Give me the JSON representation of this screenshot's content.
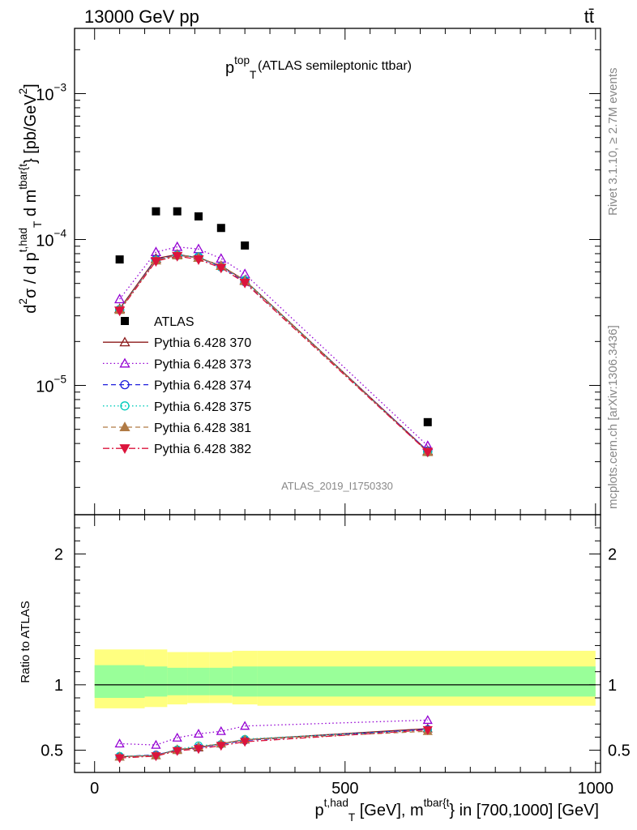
{
  "header": {
    "energy_label": "13000 GeV pp",
    "process": "tt̄"
  },
  "side_labels": {
    "rivet": "Rivet 3.1.10, ≥ 2.7M events",
    "source": "mcplots.cern.ch [arXiv:1306.3436]"
  },
  "chart_data": [
    {
      "type": "scatter",
      "panel": "main",
      "title": {
        "base": "p",
        "sup": "top",
        "sub": "T",
        "tail": " (ATLAS semileptonic ttbar)"
      },
      "ylabel": {
        "parts": [
          {
            "t": "d"
          },
          {
            "t": "2",
            "s": "sup"
          },
          {
            "t": "σ / d p"
          },
          {
            "t": "t,had",
            "s": "sup"
          },
          {
            "t": "T",
            "s": "sub"
          },
          {
            "t": " d m"
          },
          {
            "t": "tbar{t",
            "s": "sup"
          },
          {
            "t": "} [pb/GeV"
          },
          {
            "t": "2",
            "s": "sup"
          },
          {
            "t": "]"
          }
        ]
      },
      "yscale": "log",
      "ylim": [
        1.3e-06,
        0.0028
      ],
      "xlim": [
        -40,
        1010
      ],
      "yticks_major": [
        {
          "v": 1e-05,
          "base": "10",
          "exp": "−5"
        },
        {
          "v": 0.0001,
          "base": "10",
          "exp": "−4"
        },
        {
          "v": 0.001,
          "base": "10",
          "exp": "−3"
        }
      ],
      "watermark": "ATLAS_2019_I1750330",
      "legend_position": "middle-left",
      "x": [
        50,
        122.5,
        165,
        207.5,
        252.5,
        300,
        665
      ],
      "bin_edges": [
        0,
        100,
        145,
        185,
        230,
        275,
        325,
        1000
      ],
      "series": [
        {
          "name": "ATLAS",
          "color": "#000000",
          "marker": "square",
          "style": "none",
          "values": [
            7.3e-05,
            0.000156,
            0.000156,
            0.000144,
            0.00012,
            9.1e-05,
            5.6e-06
          ]
        },
        {
          "name": "Pythia 6.428 370",
          "color": "#8b1a1a",
          "marker": "triangle-up-open",
          "style": "solid",
          "values": [
            3.35e-05,
            7.4e-05,
            7.9e-05,
            7.5e-05,
            6.6e-05,
            5.25e-05,
            3.55e-06
          ]
        },
        {
          "name": "Pythia 6.428 373",
          "color": "#9400d3",
          "marker": "triangle-up-open",
          "style": "dotted",
          "values": [
            3.9e-05,
            8.2e-05,
            8.9e-05,
            8.6e-05,
            7.4e-05,
            5.8e-05,
            3.85e-06
          ]
        },
        {
          "name": "Pythia 6.428 374",
          "color": "#1e1edc",
          "marker": "circle-open",
          "style": "dashed",
          "values": [
            3.3e-05,
            7.3e-05,
            7.8e-05,
            7.5e-05,
            6.5e-05,
            5.15e-05,
            3.55e-06
          ]
        },
        {
          "name": "Pythia 6.428 375",
          "color": "#00ccbb",
          "marker": "circle-open",
          "style": "dotted",
          "values": [
            3.3e-05,
            7.2e-05,
            7.8e-05,
            7.6e-05,
            6.5e-05,
            5.25e-05,
            3.5e-06
          ]
        },
        {
          "name": "Pythia 6.428 381",
          "color": "#b07a45",
          "marker": "triangle-up-filled",
          "style": "dashed",
          "values": [
            3.3e-05,
            7.2e-05,
            7.8e-05,
            7.5e-05,
            6.6e-05,
            5.2e-05,
            3.5e-06
          ]
        },
        {
          "name": "Pythia 6.428 382",
          "color": "#dc143c",
          "marker": "triangle-down-filled",
          "style": "dashdot",
          "values": [
            3.25e-05,
            7.1e-05,
            7.7e-05,
            7.3e-05,
            6.4e-05,
            5.05e-05,
            3.5e-06
          ]
        }
      ]
    },
    {
      "type": "scatter",
      "panel": "ratio",
      "ylabel": "Ratio to ATLAS",
      "ylim": [
        0.33,
        2.3
      ],
      "yticks": [
        0.5,
        1,
        2
      ],
      "xlim": [
        -40,
        1010
      ],
      "xticks": [
        0,
        500,
        1000
      ],
      "xlabel": {
        "parts": [
          {
            "t": "p"
          },
          {
            "t": "t,had",
            "s": "sup"
          },
          {
            "t": "T",
            "s": "sub"
          },
          {
            "t": " [GeV], m"
          },
          {
            "t": "tbar{t",
            "s": "sup"
          },
          {
            "t": "} in [700,1000] [GeV]"
          }
        ]
      },
      "bands": {
        "bin_edges": [
          0,
          100,
          145,
          185,
          230,
          275,
          325,
          1000
        ],
        "yellow": [
          [
            0.82,
            1.27
          ],
          [
            0.83,
            1.27
          ],
          [
            0.85,
            1.25
          ],
          [
            0.86,
            1.25
          ],
          [
            0.86,
            1.25
          ],
          [
            0.85,
            1.26
          ],
          [
            0.84,
            1.26
          ]
        ],
        "green": [
          [
            0.9,
            1.15
          ],
          [
            0.91,
            1.14
          ],
          [
            0.92,
            1.13
          ],
          [
            0.92,
            1.13
          ],
          [
            0.92,
            1.13
          ],
          [
            0.91,
            1.14
          ],
          [
            0.91,
            1.14
          ]
        ]
      },
      "x": [
        50,
        122.5,
        165,
        207.5,
        252.5,
        300,
        665
      ],
      "series": [
        {
          "name": "Pythia 6.428 370",
          "values": [
            0.45,
            0.46,
            0.505,
            0.52,
            0.55,
            0.58,
            0.665
          ]
        },
        {
          "name": "Pythia 6.428 373",
          "values": [
            0.55,
            0.54,
            0.595,
            0.625,
            0.645,
            0.685,
            0.73
          ]
        },
        {
          "name": "Pythia 6.428 374",
          "values": [
            0.45,
            0.465,
            0.5,
            0.52,
            0.545,
            0.575,
            0.66
          ]
        },
        {
          "name": "Pythia 6.428 375",
          "values": [
            0.455,
            0.46,
            0.505,
            0.535,
            0.545,
            0.585,
            0.655
          ]
        },
        {
          "name": "Pythia 6.428 381",
          "values": [
            0.45,
            0.46,
            0.5,
            0.525,
            0.55,
            0.58,
            0.645
          ]
        },
        {
          "name": "Pythia 6.428 382",
          "values": [
            0.44,
            0.455,
            0.495,
            0.51,
            0.535,
            0.565,
            0.655
          ]
        }
      ]
    }
  ]
}
